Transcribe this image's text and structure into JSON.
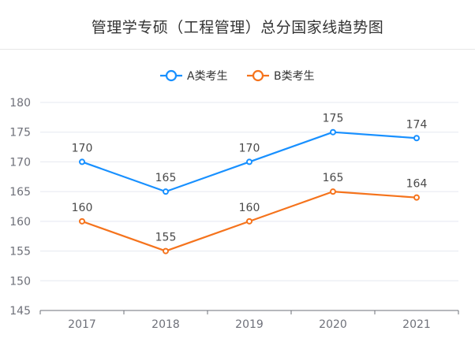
{
  "chart_data": {
    "type": "line",
    "title": "管理学专硕（工程管理）总分国家线趋势图",
    "categories": [
      "2017",
      "2018",
      "2019",
      "2020",
      "2021"
    ],
    "series": [
      {
        "name": "A类考生",
        "values": [
          170,
          165,
          170,
          175,
          174
        ],
        "color": "#1890ff"
      },
      {
        "name": "B类考生",
        "values": [
          160,
          155,
          160,
          165,
          164
        ],
        "color": "#f5731c"
      }
    ],
    "y_ticks": [
      "145",
      "150",
      "155",
      "160",
      "165",
      "170",
      "175",
      "180"
    ],
    "ylim": [
      145,
      180
    ],
    "xlabel": "",
    "ylabel": "",
    "grid": true,
    "legend": "top-center",
    "data_labels": true
  }
}
